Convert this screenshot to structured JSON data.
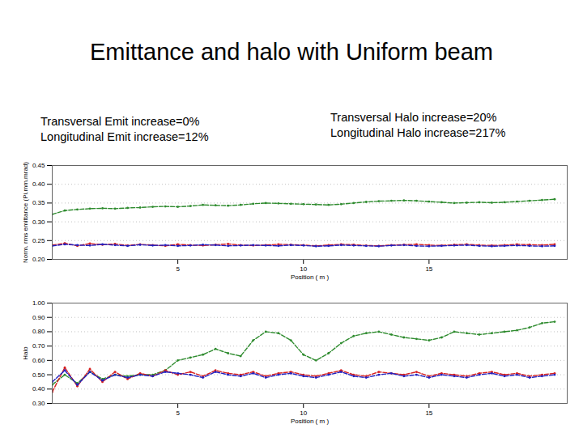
{
  "title": "Emittance and halo with Uniform beam",
  "notes": {
    "left": [
      "Transversal Emit increase=0%",
      "Longitudinal Emit increase=12%"
    ],
    "right": [
      "Transversal Halo increase=20%",
      "Longitudinal Halo increase=217%"
    ]
  },
  "chart_data": [
    {
      "type": "line",
      "xlabel": "Position ( m )",
      "ylabel": "Norm. rms emittance (Pi.mm.mrad)",
      "xlim": [
        0,
        20.5
      ],
      "xticks": [
        5,
        10,
        15
      ],
      "ylim": [
        0.2,
        0.45
      ],
      "yticks": [
        0.2,
        0.25,
        0.3,
        0.35,
        0.4,
        0.45
      ],
      "grid": true,
      "marker": "dot",
      "line_style": "dashed",
      "x": [
        0,
        0.5,
        1,
        1.5,
        2,
        2.5,
        3,
        3.5,
        4,
        4.5,
        5,
        5.5,
        6,
        6.5,
        7,
        7.5,
        8,
        8.5,
        9,
        9.5,
        10,
        10.5,
        11,
        11.5,
        12,
        12.5,
        13,
        13.5,
        14,
        14.5,
        15,
        15.5,
        16,
        16.5,
        17,
        17.5,
        18,
        18.5,
        19,
        19.5,
        20
      ],
      "series": [
        {
          "color": "#2e8b2e",
          "values": [
            0.32,
            0.33,
            0.333,
            0.335,
            0.336,
            0.335,
            0.337,
            0.338,
            0.34,
            0.341,
            0.34,
            0.342,
            0.345,
            0.344,
            0.343,
            0.345,
            0.348,
            0.35,
            0.349,
            0.348,
            0.347,
            0.346,
            0.345,
            0.347,
            0.35,
            0.353,
            0.355,
            0.356,
            0.357,
            0.356,
            0.354,
            0.352,
            0.35,
            0.351,
            0.352,
            0.351,
            0.352,
            0.354,
            0.356,
            0.358,
            0.36
          ]
        },
        {
          "color": "#d62020",
          "values": [
            0.238,
            0.243,
            0.236,
            0.242,
            0.239,
            0.241,
            0.237,
            0.24,
            0.238,
            0.236,
            0.24,
            0.238,
            0.237,
            0.239,
            0.241,
            0.238,
            0.237,
            0.238,
            0.24,
            0.239,
            0.238,
            0.236,
            0.238,
            0.24,
            0.239,
            0.237,
            0.236,
            0.238,
            0.239,
            0.24,
            0.238,
            0.237,
            0.239,
            0.24,
            0.238,
            0.237,
            0.238,
            0.24,
            0.239,
            0.238,
            0.24
          ]
        },
        {
          "color": "#2020c0",
          "values": [
            0.236,
            0.24,
            0.238,
            0.237,
            0.24,
            0.238,
            0.236,
            0.239,
            0.237,
            0.238,
            0.236,
            0.237,
            0.239,
            0.238,
            0.236,
            0.237,
            0.238,
            0.237,
            0.236,
            0.238,
            0.237,
            0.235,
            0.236,
            0.238,
            0.237,
            0.236,
            0.235,
            0.237,
            0.238,
            0.236,
            0.235,
            0.236,
            0.237,
            0.238,
            0.236,
            0.235,
            0.236,
            0.237,
            0.236,
            0.235,
            0.236
          ]
        }
      ]
    },
    {
      "type": "line",
      "xlabel": "Position ( m )",
      "ylabel": "Halo",
      "xlim": [
        0,
        20.5
      ],
      "xticks": [
        5,
        10,
        15
      ],
      "ylim": [
        0.3,
        1
      ],
      "yticks": [
        0.3,
        0.4,
        0.5,
        0.6,
        0.7,
        0.8,
        0.9,
        1
      ],
      "grid": true,
      "marker": "dot",
      "line_style": "dashed",
      "x": [
        0,
        0.5,
        1,
        1.5,
        2,
        2.5,
        3,
        3.5,
        4,
        4.5,
        5,
        5.5,
        6,
        6.5,
        7,
        7.5,
        8,
        8.5,
        9,
        9.5,
        10,
        10.5,
        11,
        11.5,
        12,
        12.5,
        13,
        13.5,
        14,
        14.5,
        15,
        15.5,
        16,
        16.5,
        17,
        17.5,
        18,
        18.5,
        19,
        19.5,
        20
      ],
      "series": [
        {
          "color": "#2e8b2e",
          "values": [
            0.43,
            0.5,
            0.44,
            0.52,
            0.47,
            0.5,
            0.49,
            0.5,
            0.5,
            0.53,
            0.6,
            0.62,
            0.64,
            0.68,
            0.65,
            0.63,
            0.74,
            0.8,
            0.79,
            0.74,
            0.64,
            0.6,
            0.65,
            0.72,
            0.77,
            0.79,
            0.8,
            0.78,
            0.76,
            0.75,
            0.74,
            0.76,
            0.8,
            0.79,
            0.78,
            0.79,
            0.8,
            0.81,
            0.83,
            0.86,
            0.87
          ]
        },
        {
          "color": "#d62020",
          "values": [
            0.38,
            0.55,
            0.42,
            0.54,
            0.45,
            0.52,
            0.47,
            0.51,
            0.49,
            0.53,
            0.5,
            0.52,
            0.49,
            0.53,
            0.51,
            0.5,
            0.52,
            0.49,
            0.51,
            0.52,
            0.5,
            0.49,
            0.51,
            0.53,
            0.5,
            0.49,
            0.52,
            0.51,
            0.5,
            0.52,
            0.49,
            0.51,
            0.5,
            0.49,
            0.51,
            0.52,
            0.5,
            0.51,
            0.49,
            0.5,
            0.51
          ]
        },
        {
          "color": "#2020c0",
          "values": [
            0.45,
            0.53,
            0.43,
            0.52,
            0.46,
            0.5,
            0.48,
            0.5,
            0.49,
            0.52,
            0.51,
            0.5,
            0.48,
            0.52,
            0.5,
            0.49,
            0.51,
            0.48,
            0.5,
            0.51,
            0.49,
            0.48,
            0.5,
            0.52,
            0.49,
            0.48,
            0.5,
            0.51,
            0.49,
            0.5,
            0.48,
            0.5,
            0.49,
            0.48,
            0.5,
            0.51,
            0.49,
            0.5,
            0.48,
            0.49,
            0.5
          ]
        }
      ]
    }
  ]
}
